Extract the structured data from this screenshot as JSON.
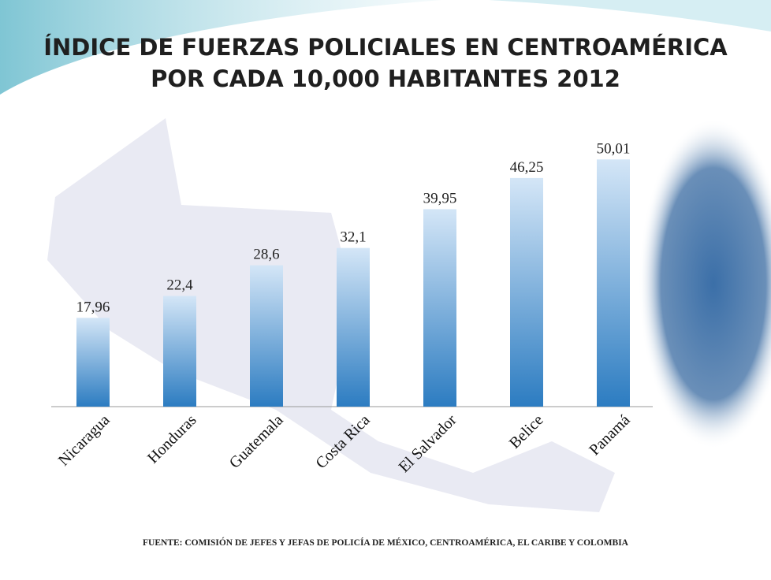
{
  "chart_data": {
    "type": "bar",
    "title": [
      "ÍNDICE DE FUERZAS POLICIALES EN CENTROAMÉRICA",
      "POR CADA 10,000 HABITANTES 2012"
    ],
    "categories": [
      "Nicaragua",
      "Honduras",
      "Guatemala",
      "Costa Rica",
      "El Salvador",
      "Belice",
      "Panamá"
    ],
    "values": [
      17.96,
      22.4,
      28.6,
      32.1,
      39.95,
      46.25,
      50.01
    ],
    "value_labels": [
      "17,96",
      "22,4",
      "28,6",
      "32,1",
      "39,95",
      "46,25",
      "50,01"
    ],
    "ylim": [
      0,
      55
    ],
    "source": "FUENTE: COMISIÓN DE JEFES Y JEFAS DE POLICÍA DE MÉXICO, CENTROAMÉRICA, EL CARIBE Y COLOMBIA"
  }
}
